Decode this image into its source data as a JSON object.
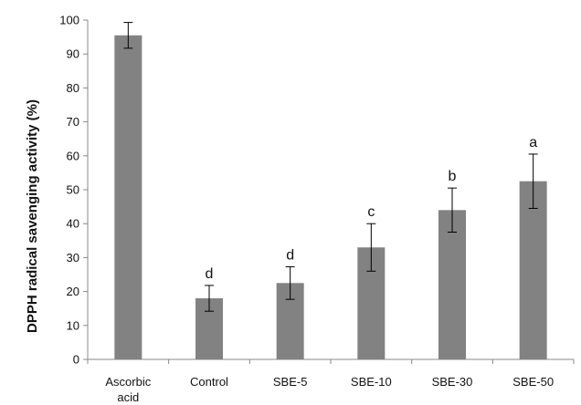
{
  "chart_data": {
    "type": "bar",
    "title": "",
    "xlabel": "",
    "ylabel": "DPPH radical savenging activity (%)",
    "categories": [
      [
        "Ascorbic",
        "acid"
      ],
      [
        "Control"
      ],
      [
        "SBE-5"
      ],
      [
        "SBE-10"
      ],
      [
        "SBE-30"
      ],
      [
        "SBE-50"
      ]
    ],
    "values": [
      95.5,
      18.0,
      22.5,
      33.0,
      44.0,
      52.5
    ],
    "error": [
      3.8,
      3.8,
      4.8,
      7.0,
      6.5,
      8.0
    ],
    "significance_labels": [
      "",
      "d",
      "d",
      "c",
      "b",
      "a"
    ],
    "ylim": [
      0,
      100
    ],
    "yticks": [
      0,
      10,
      20,
      30,
      40,
      50,
      60,
      70,
      80,
      90,
      100
    ],
    "grid": false,
    "colors": {
      "bar": "#828282",
      "axis": "#888888",
      "text": "#111111"
    }
  }
}
